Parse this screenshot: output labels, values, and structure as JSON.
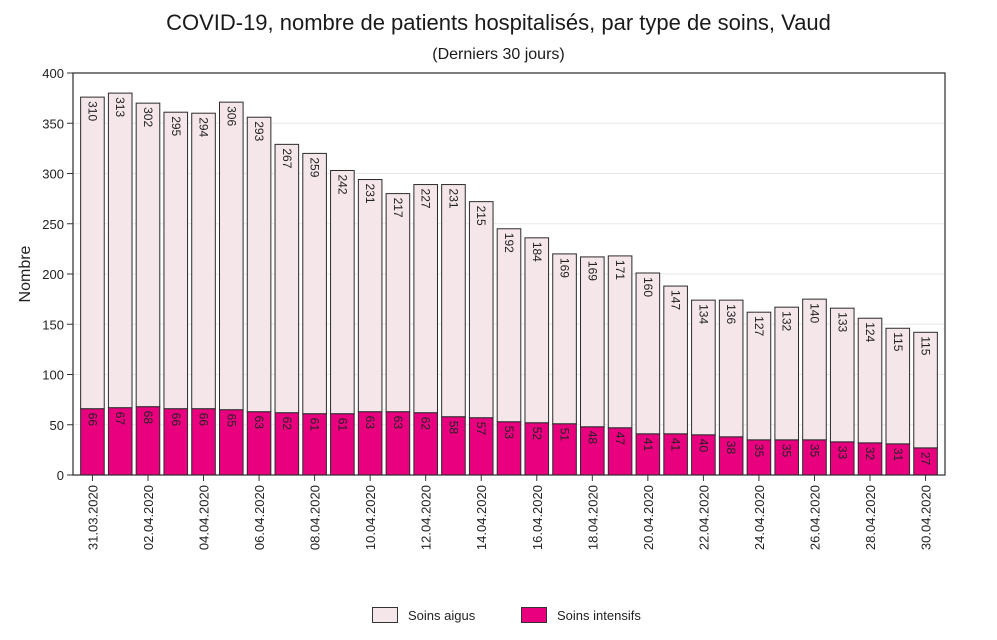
{
  "chart_data": {
    "type": "bar",
    "stacked": true,
    "title": "COVID-19, nombre de patients hospitalisés, par type de soins, Vaud",
    "subtitle": "(Derniers 30 jours)",
    "ylabel": "Nombre",
    "xlabel": "",
    "ylim": [
      0,
      400
    ],
    "yticks": [
      0,
      50,
      100,
      150,
      200,
      250,
      300,
      350,
      400
    ],
    "grid": "horizontal",
    "legend_position": "bottom",
    "categories": [
      "31.03.2020",
      "01.04.2020",
      "02.04.2020",
      "03.04.2020",
      "04.04.2020",
      "05.04.2020",
      "06.04.2020",
      "07.04.2020",
      "08.04.2020",
      "09.04.2020",
      "10.04.2020",
      "11.04.2020",
      "12.04.2020",
      "13.04.2020",
      "14.04.2020",
      "15.04.2020",
      "16.04.2020",
      "17.04.2020",
      "18.04.2020",
      "19.04.2020",
      "20.04.2020",
      "21.04.2020",
      "22.04.2020",
      "23.04.2020",
      "24.04.2020",
      "25.04.2020",
      "26.04.2020",
      "27.04.2020",
      "28.04.2020",
      "29.04.2020",
      "30.04.2020"
    ],
    "xtick_labels": [
      "31.03.2020",
      "02.04.2020",
      "04.04.2020",
      "06.04.2020",
      "08.04.2020",
      "10.04.2020",
      "12.04.2020",
      "14.04.2020",
      "16.04.2020",
      "18.04.2020",
      "20.04.2020",
      "22.04.2020",
      "24.04.2020",
      "26.04.2020",
      "28.04.2020",
      "30.04.2020"
    ],
    "series": [
      {
        "name": "Soins intensifs",
        "color": "#e8007f",
        "values": [
          66,
          67,
          68,
          66,
          66,
          65,
          63,
          62,
          61,
          61,
          63,
          63,
          62,
          58,
          57,
          53,
          52,
          51,
          48,
          47,
          41,
          41,
          40,
          38,
          35,
          35,
          35,
          33,
          32,
          31,
          27
        ]
      },
      {
        "name": "Soins aigus",
        "color": "#f5e6ea",
        "values": [
          310,
          313,
          302,
          295,
          294,
          306,
          293,
          267,
          259,
          242,
          231,
          217,
          227,
          231,
          215,
          192,
          184,
          169,
          169,
          171,
          160,
          147,
          134,
          136,
          127,
          132,
          140,
          133,
          124,
          115,
          115
        ]
      }
    ]
  },
  "legend": {
    "items": [
      {
        "label": "Soins aigus",
        "color": "#f5e6ea"
      },
      {
        "label": "Soins intensifs",
        "color": "#e8007f"
      }
    ]
  }
}
